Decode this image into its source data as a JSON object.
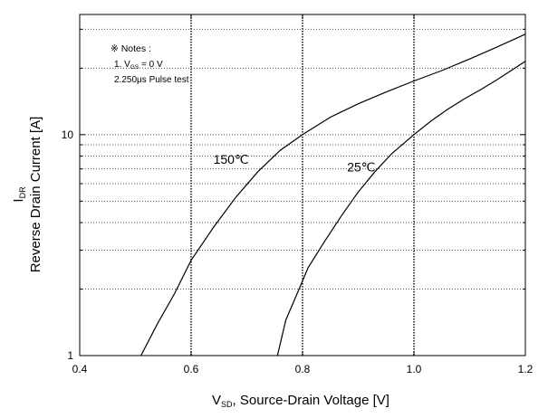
{
  "chart_data": {
    "type": "line",
    "title": "",
    "xlabel": {
      "main": "V",
      "sub": "SD",
      "rest": ", Source-Drain Voltage [V]"
    },
    "ylabel": {
      "line1_main": "I",
      "line1_sub": "DR",
      "line2": "Reverse Drain Current [A]"
    },
    "x_axis": {
      "range": [
        0.4,
        1.2
      ],
      "ticks": [
        0.4,
        0.6,
        0.8,
        1.0,
        1.2
      ],
      "tick_labels": [
        "0.4",
        "0.6",
        "0.8",
        "1.0",
        "1.2"
      ]
    },
    "y_axis": {
      "scale": "log",
      "range": [
        1,
        35
      ],
      "major_ticks": [
        1,
        10
      ],
      "tick_labels": [
        "1",
        "10"
      ],
      "minor_gridlines": [
        2,
        3,
        4,
        5,
        6,
        7,
        8,
        9,
        20,
        30
      ]
    },
    "grid": {
      "x": "dotted vertical at 0.6, 0.8, 1.0",
      "y": "dotted horizontal at log minor ticks"
    },
    "notes": {
      "title": "※ Notes :",
      "line1_prefix": "1. V",
      "line1_sub": "GS",
      "line1_suffix": " = 0 V",
      "line2": "2.250μs Pulse test"
    },
    "series": [
      {
        "name": "150℃",
        "x": [
          0.51,
          0.54,
          0.57,
          0.6,
          0.64,
          0.68,
          0.72,
          0.76,
          0.8,
          0.85,
          0.9,
          0.95,
          1.0,
          1.05,
          1.1,
          1.15,
          1.2
        ],
        "y": [
          1.0,
          1.4,
          1.9,
          2.7,
          3.8,
          5.2,
          6.8,
          8.5,
          10.0,
          12.0,
          13.8,
          15.6,
          17.5,
          19.5,
          22.0,
          25.0,
          28.5
        ]
      },
      {
        "name": "25℃",
        "x": [
          0.755,
          0.77,
          0.79,
          0.81,
          0.84,
          0.87,
          0.9,
          0.93,
          0.96,
          1.0,
          1.03,
          1.06,
          1.09,
          1.12,
          1.15,
          1.2
        ],
        "y": [
          1.0,
          1.45,
          1.9,
          2.5,
          3.3,
          4.3,
          5.5,
          6.8,
          8.2,
          10.0,
          11.5,
          13.0,
          14.5,
          16.0,
          17.8,
          21.5
        ]
      }
    ]
  }
}
